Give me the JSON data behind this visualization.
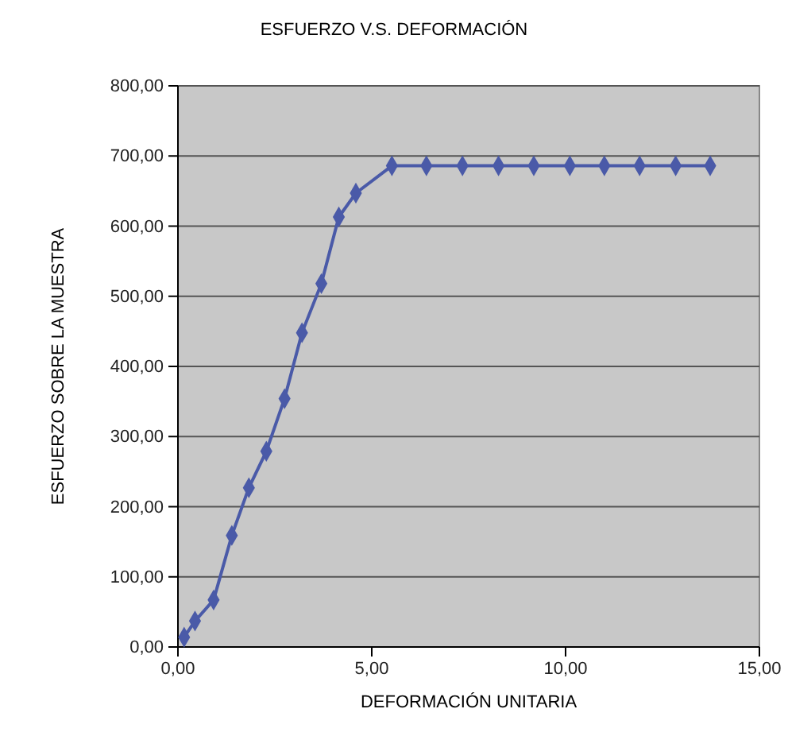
{
  "chart_data": {
    "type": "line",
    "title": "ESFUERZO V.S. DEFORMACIÓN",
    "xlabel": "DEFORMACIÓN UNITARIA",
    "ylabel": "ESFUERZO SOBRE LA MUESTRA",
    "x": [
      0.16,
      0.44,
      0.92,
      1.39,
      1.83,
      2.28,
      2.75,
      3.2,
      3.7,
      4.15,
      4.59,
      5.52,
      6.41,
      7.34,
      8.27,
      9.18,
      10.11,
      11.0,
      11.91,
      12.84,
      13.73
    ],
    "series": [
      {
        "color": "#4a5aa8",
        "values": [
          14,
          37,
          67,
          159,
          227,
          279,
          354,
          448,
          518,
          613,
          647,
          686,
          686,
          686,
          686,
          686,
          686,
          686,
          686,
          686,
          686
        ]
      }
    ],
    "xlim": [
      0,
      15
    ],
    "xticks": [
      {
        "value": 0,
        "label": "0,00"
      },
      {
        "value": 5,
        "label": "5,00"
      },
      {
        "value": 10,
        "label": "10,00"
      },
      {
        "value": 15,
        "label": "15,00"
      }
    ],
    "ylim": [
      0,
      800
    ],
    "yticks": [
      {
        "value": 0,
        "label": "0,00"
      },
      {
        "value": 100,
        "label": "100,00"
      },
      {
        "value": 200,
        "label": "200,00"
      },
      {
        "value": 300,
        "label": "300,00"
      },
      {
        "value": 400,
        "label": "400,00"
      },
      {
        "value": 500,
        "label": "500,00"
      },
      {
        "value": 600,
        "label": "600,00"
      },
      {
        "value": 700,
        "label": "700,00"
      },
      {
        "value": 800,
        "label": "800,00"
      }
    ],
    "grid": "y",
    "marker": "diamond",
    "line_style": "solid"
  }
}
